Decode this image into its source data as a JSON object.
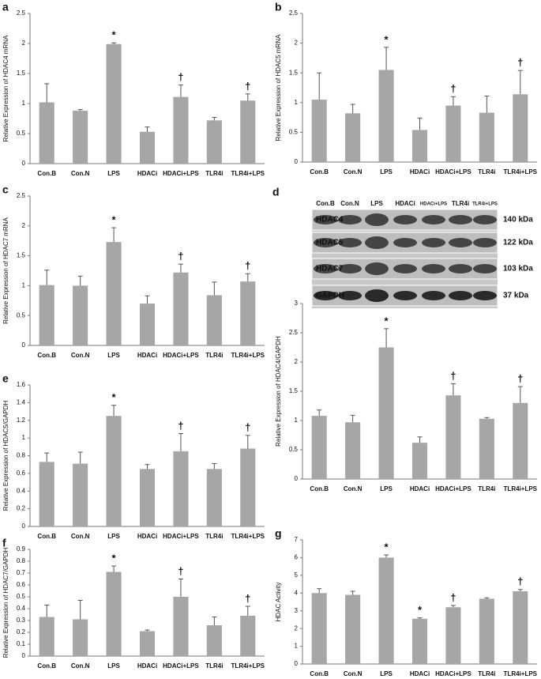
{
  "chart_data": [
    {
      "type": "bar",
      "label": "a",
      "y_label": "Relative Expression of HDAC4 mRNA",
      "color": "#a6a6a6",
      "categories": [
        "Con.B",
        "Con.N",
        "LPS",
        "HDACi",
        "HDACi+LPS",
        "TLR4i",
        "TLR4i+LPS"
      ],
      "values": [
        1.02,
        0.88,
        1.99,
        0.53,
        1.11,
        0.72,
        1.05
      ],
      "errors": [
        0.31,
        0.02,
        0.02,
        0.08,
        0.2,
        0.05,
        0.11
      ],
      "annotations": [
        null,
        null,
        "*",
        null,
        "†",
        null,
        "†"
      ],
      "ylim": [
        0,
        2.5
      ],
      "yticks": [
        0,
        0.5,
        1,
        1.5,
        2,
        2.5
      ]
    },
    {
      "type": "bar",
      "label": "b",
      "y_label": "Relative Expression of HDAC5 mRNA",
      "color": "#a6a6a6",
      "categories": [
        "Con.B",
        "Con.N",
        "LPS",
        "HDACi",
        "HDACi+LPS",
        "TLR4i",
        "TLR4i+LPS"
      ],
      "values": [
        1.05,
        0.82,
        1.55,
        0.54,
        0.95,
        0.83,
        1.14
      ],
      "errors": [
        0.45,
        0.15,
        0.38,
        0.2,
        0.15,
        0.28,
        0.4
      ],
      "annotations": [
        null,
        null,
        "*",
        null,
        "†",
        null,
        "†"
      ],
      "ylim": [
        0,
        2.5
      ],
      "yticks": [
        0,
        0.5,
        1,
        1.5,
        2,
        2.5
      ]
    },
    {
      "type": "bar",
      "label": "c",
      "y_label": "Relative Expression of HDAC7 mRNA",
      "color": "#a6a6a6",
      "categories": [
        "Con.B",
        "Con.N",
        "LPS",
        "HDACi",
        "HDACi+LPS",
        "TLR4i",
        "TLR4i+LPS"
      ],
      "values": [
        1.01,
        1.0,
        1.73,
        0.7,
        1.22,
        0.84,
        1.07
      ],
      "errors": [
        0.25,
        0.16,
        0.24,
        0.13,
        0.14,
        0.22,
        0.13
      ],
      "annotations": [
        null,
        null,
        "*",
        null,
        "†",
        null,
        "†"
      ],
      "ylim": [
        0,
        2.5
      ],
      "yticks": [
        0,
        0.5,
        1,
        1.5,
        2,
        2.5
      ]
    },
    {
      "type": "bar",
      "y_label": "Relative Expression of HDAC4/GAPDH",
      "color": "#a6a6a6",
      "categories": [
        "Con.B",
        "Con.N",
        "LPS",
        "HDACi",
        "HDACi+LPS",
        "TLR4i",
        "TLR4i+LPS"
      ],
      "values": [
        1.08,
        0.97,
        2.25,
        0.62,
        1.43,
        1.03,
        1.3
      ],
      "errors": [
        0.1,
        0.12,
        0.32,
        0.1,
        0.2,
        0.02,
        0.28
      ],
      "annotations": [
        null,
        null,
        "*",
        null,
        "†",
        null,
        "†"
      ],
      "ylim": [
        0,
        3
      ],
      "yticks": [
        0,
        0.5,
        1,
        1.5,
        2,
        2.5,
        3
      ]
    },
    {
      "type": "bar",
      "label": "e",
      "y_label": "Relative Expression of HDAC5/GAPDH",
      "color": "#a6a6a6",
      "categories": [
        "Con.B",
        "Con.N",
        "LPS",
        "HDACi",
        "HDACi+LPS",
        "TLR4i",
        "TLR4i+LPS"
      ],
      "values": [
        0.73,
        0.71,
        1.25,
        0.65,
        0.85,
        0.65,
        0.88
      ],
      "errors": [
        0.1,
        0.13,
        0.12,
        0.05,
        0.2,
        0.06,
        0.15
      ],
      "annotations": [
        null,
        null,
        "*",
        null,
        "†",
        null,
        "†"
      ],
      "ylim": [
        0,
        1.6
      ],
      "yticks": [
        0,
        0.2,
        0.4,
        0.6,
        0.8,
        1,
        1.2,
        1.4,
        1.6
      ]
    },
    {
      "type": "bar",
      "label": "f",
      "y_label": "Relative Expression of HDAC7/GAPDH",
      "color": "#a6a6a6",
      "categories": [
        "Con.B",
        "Con.N",
        "LPS",
        "HDACi",
        "HDACi+LPS",
        "TLR4i",
        "TLR4i+LPS"
      ],
      "values": [
        0.33,
        0.31,
        0.71,
        0.21,
        0.5,
        0.26,
        0.34
      ],
      "errors": [
        0.1,
        0.16,
        0.05,
        0.01,
        0.15,
        0.07,
        0.08
      ],
      "annotations": [
        null,
        null,
        "*",
        null,
        "†",
        null,
        "†"
      ],
      "ylim": [
        0,
        0.9
      ],
      "yticks": [
        0,
        0.1,
        0.2,
        0.3,
        0.4,
        0.5,
        0.6,
        0.7,
        0.8,
        0.9
      ]
    },
    {
      "type": "bar",
      "label": "g",
      "y_label": "HDAC Activity",
      "color": "#a6a6a6",
      "categories": [
        "Con.B",
        "Con.N",
        "LPS",
        "HDACi",
        "HDACi+LPS",
        "TLR4i",
        "TLR4i+LPS"
      ],
      "values": [
        4.0,
        3.9,
        6.0,
        2.55,
        3.2,
        3.68,
        4.1
      ],
      "errors": [
        0.25,
        0.2,
        0.15,
        0.05,
        0.1,
        0.05,
        0.1
      ],
      "annotations": [
        null,
        null,
        "*",
        "*",
        "†",
        null,
        "†"
      ],
      "ylim": [
        0,
        7
      ],
      "yticks": [
        0,
        1,
        2,
        3,
        4,
        5,
        6,
        7
      ]
    }
  ],
  "blot": {
    "label": "d",
    "lanes": [
      "Con.B",
      "Con.N",
      "LPS",
      "HDACi",
      "HDACi+LPS",
      "TLR4i",
      "TLR4i+LPS"
    ],
    "bands": [
      {
        "name": "HDAC4",
        "size": "140 kDa"
      },
      {
        "name": "HDAC5",
        "size": "122 kDa"
      },
      {
        "name": "HDAC7",
        "size": "103 kDa"
      },
      {
        "name": "GAPDH",
        "size": "37 kDa"
      }
    ]
  }
}
